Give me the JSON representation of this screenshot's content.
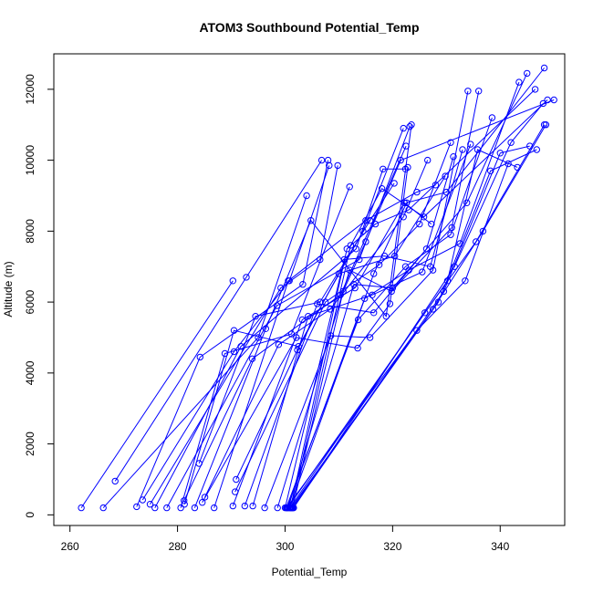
{
  "chart_data": {
    "type": "scatter",
    "title": "ATOM3 Southbound Potential_Temp",
    "xlabel": "Potential_Temp",
    "ylabel": "Altitude (m)",
    "xlim": [
      257,
      352
    ],
    "ylim": [
      -300,
      13000
    ],
    "xticks": [
      260,
      280,
      300,
      320,
      340
    ],
    "yticks": [
      0,
      2000,
      4000,
      6000,
      8000,
      10000,
      12000
    ],
    "grid": false,
    "legend": "none",
    "color": "#0000ff",
    "series": [
      {
        "x": [
          262.1,
          290.3
        ],
        "y": [
          200,
          6600
        ]
      },
      {
        "x": [
          266.2,
          295.0,
          304.0
        ],
        "y": [
          200,
          5000,
          9000
        ]
      },
      {
        "x": [
          268.4,
          292.8,
          306.8
        ],
        "y": [
          950,
          6700,
          10000
        ]
      },
      {
        "x": [
          272.4,
          284.2,
          303.3,
          308.0
        ],
        "y": [
          230,
          4450,
          6500,
          10000
        ]
      },
      {
        "x": [
          273.5,
          290.5,
          300.8,
          308.2
        ],
        "y": [
          420,
          4600,
          6600,
          9850
        ]
      },
      {
        "x": [
          274.9,
          299.2,
          306.5,
          309.8
        ],
        "y": [
          300,
          6400,
          7200,
          9850
        ]
      },
      {
        "x": [
          275.8,
          291.8,
          313.2,
          318.2,
          322.4
        ],
        "y": [
          200,
          4750,
          7500,
          9750,
          9750
        ]
      },
      {
        "x": [
          278.0,
          298.5,
          313.8,
          323.2
        ],
        "y": [
          200,
          5900,
          7200,
          10950
        ]
      },
      {
        "x": [
          280.6,
          288.8,
          301.2,
          312.0
        ],
        "y": [
          200,
          4550,
          5100,
          9250
        ]
      },
      {
        "x": [
          281.2,
          293.9,
          310.3,
          322.5
        ],
        "y": [
          400,
          4400,
          6200,
          10400
        ]
      },
      {
        "x": [
          281.3,
          290.5,
          302.5,
          314.5,
          322.0
        ],
        "y": [
          300,
          5200,
          4750,
          8000,
          10900
        ]
      },
      {
        "x": [
          283.2,
          296.4,
          304.8,
          318.8,
          323.5
        ],
        "y": [
          200,
          5250,
          8300,
          5600,
          11000
        ]
      },
      {
        "x": [
          284.0,
          294.5,
          306.5,
          315.8,
          320.3
        ],
        "y": [
          1450,
          5600,
          6000,
          8300,
          9350
        ]
      },
      {
        "x": [
          284.6,
          302.1,
          313.5,
          319.5,
          322.8
        ],
        "y": [
          350,
          5000,
          4700,
          5950,
          9800
        ]
      },
      {
        "x": [
          285.1,
          298.8,
          308.4,
          322.0,
          326.5
        ],
        "y": [
          500,
          4800,
          5800,
          8400,
          10000
        ]
      },
      {
        "x": [
          286.8,
          300.6,
          315.0,
          324.5,
          328.0
        ],
        "y": [
          200,
          6600,
          8300,
          9100,
          9300
        ]
      },
      {
        "x": [
          290.3,
          303.2,
          313.0,
          322.2,
          327.2
        ],
        "y": [
          250,
          5500,
          6400,
          8800,
          8200
        ]
      },
      {
        "x": [
          290.7,
          307.5,
          317.5,
          325.0,
          330.8
        ],
        "y": [
          650,
          6000,
          7050,
          8200,
          10500
        ]
      },
      {
        "x": [
          290.9,
          302.3,
          310.0,
          320.4,
          329.8
        ],
        "y": [
          1000,
          4650,
          6800,
          7300,
          9550
        ]
      },
      {
        "x": [
          292.5,
          306.0,
          316.5,
          326.3,
          331.3
        ],
        "y": [
          250,
          5950,
          5700,
          7500,
          10100
        ]
      },
      {
        "x": [
          294.0,
          304.3,
          316.2,
          325.5,
          334.5
        ],
        "y": [
          250,
          5600,
          6200,
          6850,
          10450
        ]
      },
      {
        "x": [
          296.2,
          308.5,
          315.8,
          327.5,
          334.0
        ],
        "y": [
          200,
          5050,
          5000,
          6900,
          11950
        ]
      },
      {
        "x": [
          298.6,
          312.0,
          319.8,
          331.0,
          336.0
        ],
        "y": [
          200,
          6900,
          6300,
          8100,
          11950
        ]
      },
      {
        "x": [
          300.0,
          311.0,
          318.5,
          327.0,
          333.0
        ],
        "y": [
          200,
          7200,
          7300,
          7000,
          10300
        ]
      },
      {
        "x": [
          300.2,
          313.6,
          322.4,
          330.8,
          338.5
        ],
        "y": [
          200,
          5500,
          7000,
          7900,
          11200
        ]
      },
      {
        "x": [
          300.4,
          314.8,
          323.0,
          332.5,
          343.5
        ],
        "y": [
          200,
          6100,
          6900,
          7650,
          12200
        ]
      },
      {
        "x": [
          300.6,
          312.8,
          320.0,
          333.8,
          345.0
        ],
        "y": [
          200,
          6500,
          6400,
          8800,
          12450
        ]
      },
      {
        "x": [
          300.8,
          316.5,
          322.6,
          330.0,
          348.2
        ],
        "y": [
          200,
          6800,
          8800,
          9100,
          12600
        ]
      },
      {
        "x": [
          301.0,
          311.5,
          316.8,
          323.0,
          346.5
        ],
        "y": [
          200,
          7500,
          8200,
          8600,
          12000
        ]
      },
      {
        "x": [
          301.2,
          312.2,
          318.0,
          325.8,
          348.8
        ],
        "y": [
          200,
          7600,
          9200,
          8400,
          11700
        ]
      },
      {
        "x": [
          301.4,
          310.8,
          315.0,
          321.5,
          350.0
        ],
        "y": [
          200,
          6300,
          7700,
          10000,
          11700
        ]
      },
      {
        "x": [
          300.9,
          326.0,
          335.5,
          348.2
        ],
        "y": [
          200,
          5700,
          7700,
          11000
        ]
      },
      {
        "x": [
          301.1,
          327.5,
          336.8,
          348.5
        ],
        "y": [
          200,
          5800,
          8000,
          11000
        ]
      },
      {
        "x": [
          301.3,
          328.5,
          338.2,
          346.8
        ],
        "y": [
          200,
          6000,
          9700,
          10300
        ]
      },
      {
        "x": [
          301.5,
          329.5,
          340.0,
          345.5
        ],
        "y": [
          200,
          6300,
          10200,
          10400
        ]
      },
      {
        "x": [
          300.5,
          330.2,
          335.8,
          343.2
        ],
        "y": [
          200,
          6600,
          10300,
          9800
        ]
      },
      {
        "x": [
          301.6,
          331.5,
          342.0,
          348.0
        ],
        "y": [
          200,
          7000,
          10500,
          11600
        ]
      },
      {
        "x": [
          300.3,
          324.5,
          333.5,
          341.5
        ],
        "y": [
          200,
          5200,
          6600,
          9900
        ]
      }
    ]
  }
}
